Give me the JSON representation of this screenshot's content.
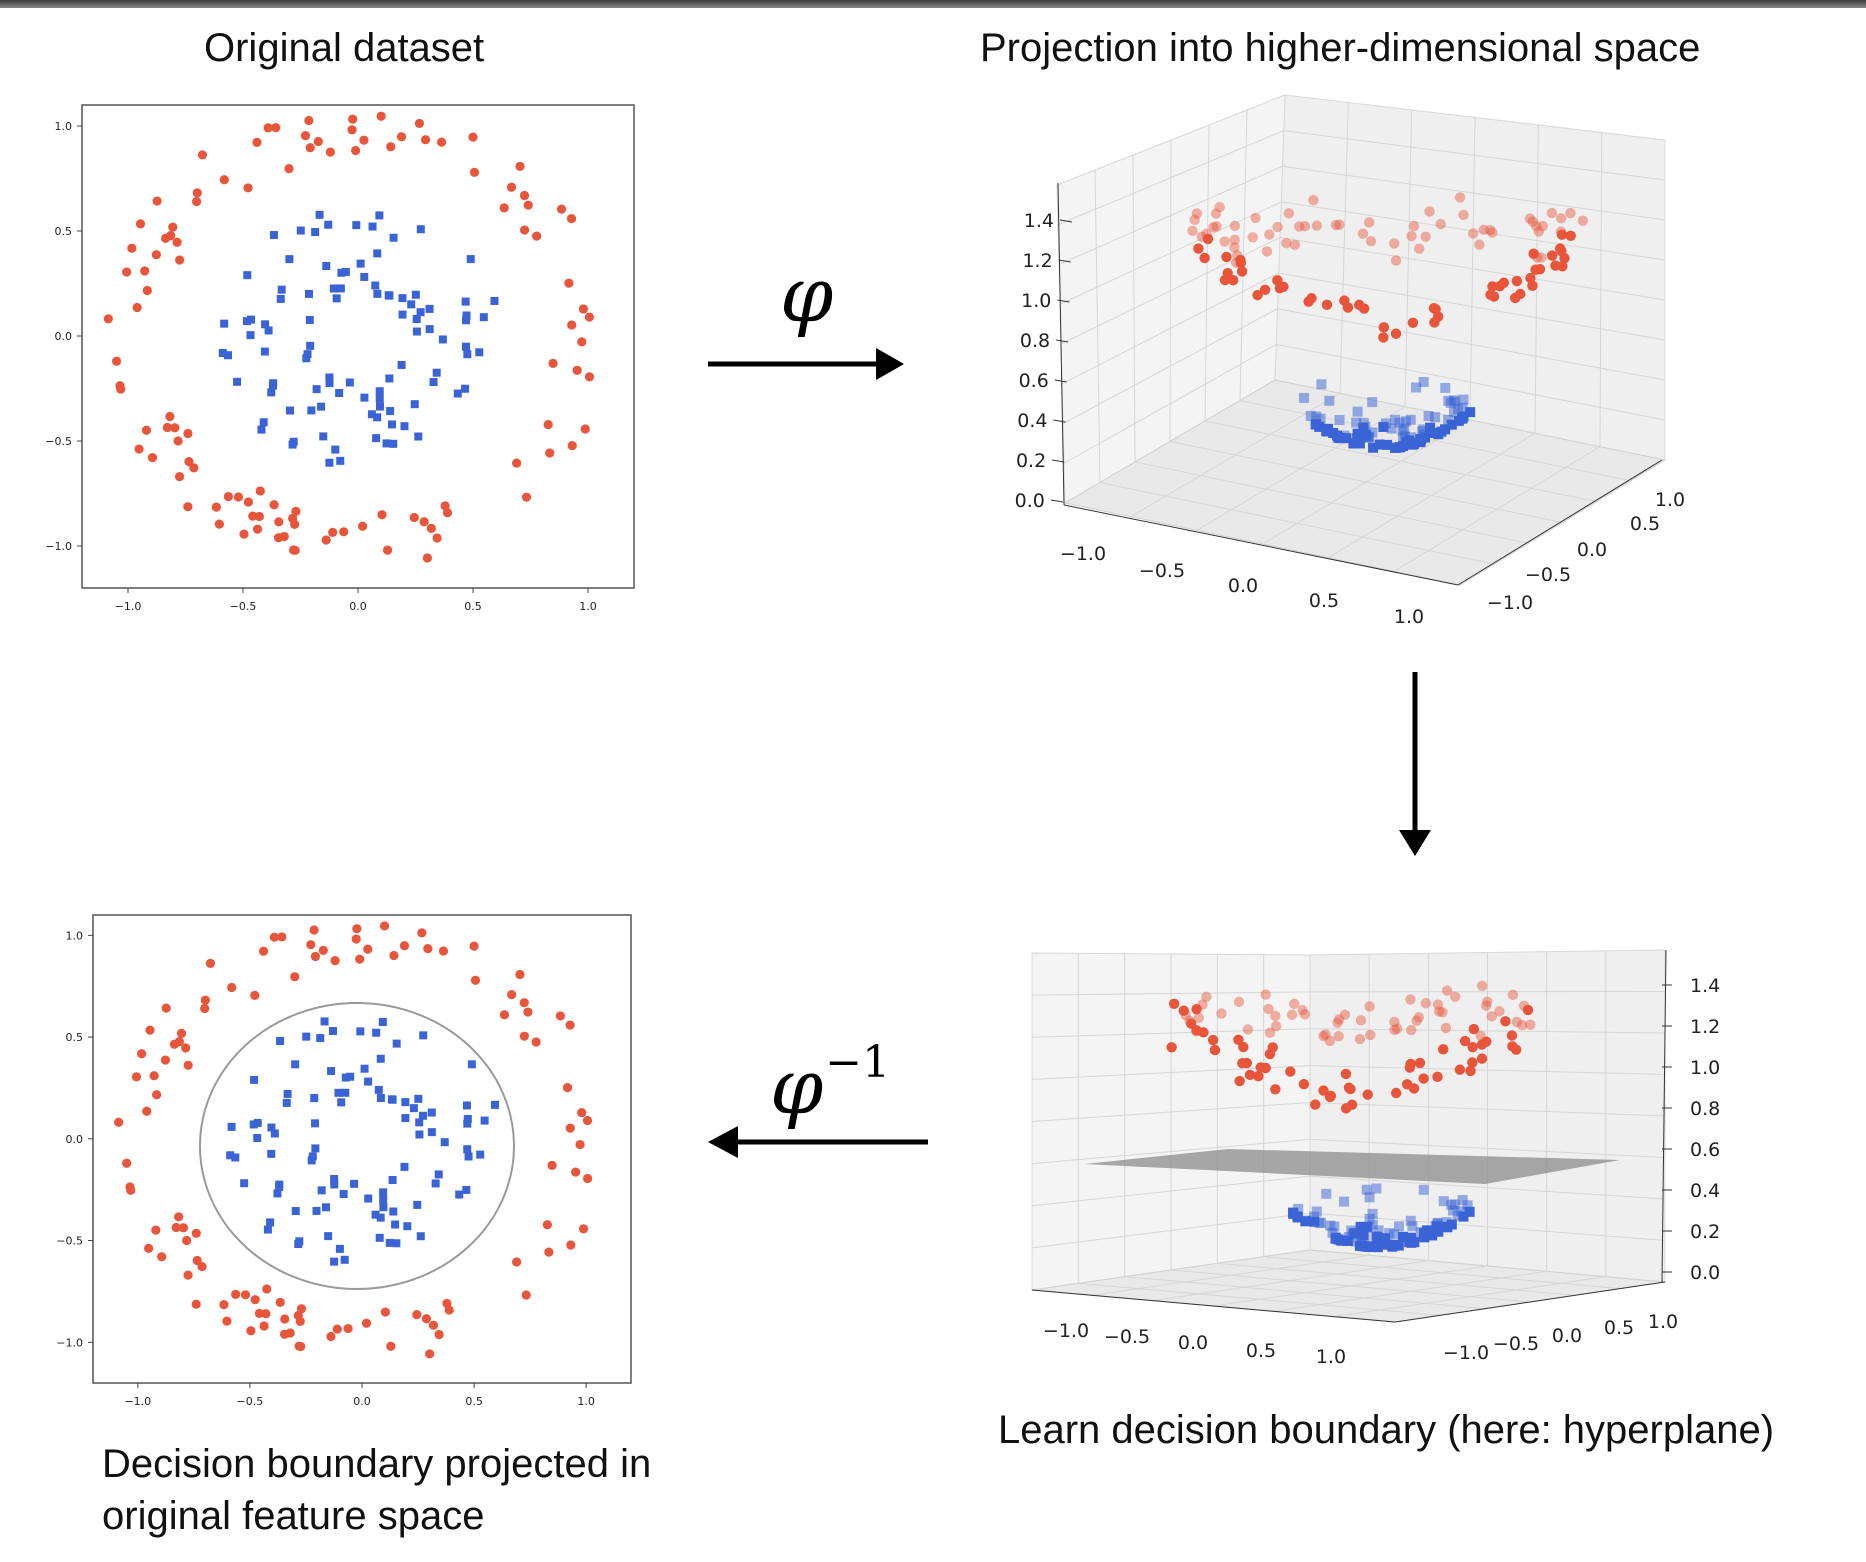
{
  "captions": {
    "original": "Original dataset",
    "projection": "Projection into higher-dimensional space",
    "learn": "Learn decision boundary (here: hyperplane)",
    "projected_line1": "Decision boundary projected in",
    "projected_line2": "original feature space"
  },
  "transforms": {
    "forward": "φ",
    "inverse_base": "φ",
    "inverse_exp": "−1"
  },
  "colors": {
    "outer_class": "#e8553a",
    "inner_class": "#3a63d6",
    "hyperplane": "#9a9a9a",
    "boundary_circle": "#9a9a9a"
  },
  "chart_data": [
    {
      "type": "scatter",
      "panel": "original-dataset",
      "xlim": [
        -1.2,
        1.2
      ],
      "ylim": [
        -1.2,
        1.1
      ],
      "xticks": [
        "−1.0",
        "−0.5",
        "0.0",
        "0.5",
        "1.0"
      ],
      "yticks": [
        "1.0",
        "0.5",
        "0.0",
        "−0.5",
        "−1.0"
      ],
      "series": [
        {
          "marker": "circle",
          "color": "#e8553a",
          "pattern": "ring",
          "radius_range": [
            0.85,
            1.1
          ],
          "count": 110
        },
        {
          "marker": "square",
          "color": "#3a63d6",
          "pattern": "ring",
          "radius_range": [
            0.2,
            0.6
          ],
          "count": 100
        }
      ]
    },
    {
      "type": "scatter3d",
      "panel": "projection",
      "zticks": [
        "1.4",
        "1.2",
        "1.0",
        "0.8",
        "0.6",
        "0.4",
        "0.2",
        "0.0"
      ],
      "xticks": [
        "−1.0",
        "−0.5",
        "0.0",
        "0.5",
        "1.0"
      ],
      "yticks": [
        "−1.0",
        "−0.5",
        "0.0",
        "0.5",
        "1.0"
      ]
    },
    {
      "type": "scatter3d",
      "panel": "hyperplane",
      "zticks": [
        "1.4",
        "1.2",
        "1.0",
        "0.8",
        "0.6",
        "0.4",
        "0.2",
        "0.0"
      ],
      "xticks": [
        "−1.0",
        "−0.5",
        "0.0",
        "0.5",
        "1.0"
      ],
      "yticks": [
        "−1.0",
        "−0.5",
        "0.0",
        "0.5",
        "1.0"
      ]
    },
    {
      "type": "scatter",
      "panel": "decision-boundary-2d",
      "xlim": [
        -1.2,
        1.2
      ],
      "ylim": [
        -1.2,
        1.1
      ],
      "xticks": [
        "−1.0",
        "−0.5",
        "0.0",
        "0.5",
        "1.0"
      ],
      "yticks": [
        "1.0",
        "0.5",
        "0.0",
        "−0.5",
        "−1.0"
      ]
    }
  ]
}
